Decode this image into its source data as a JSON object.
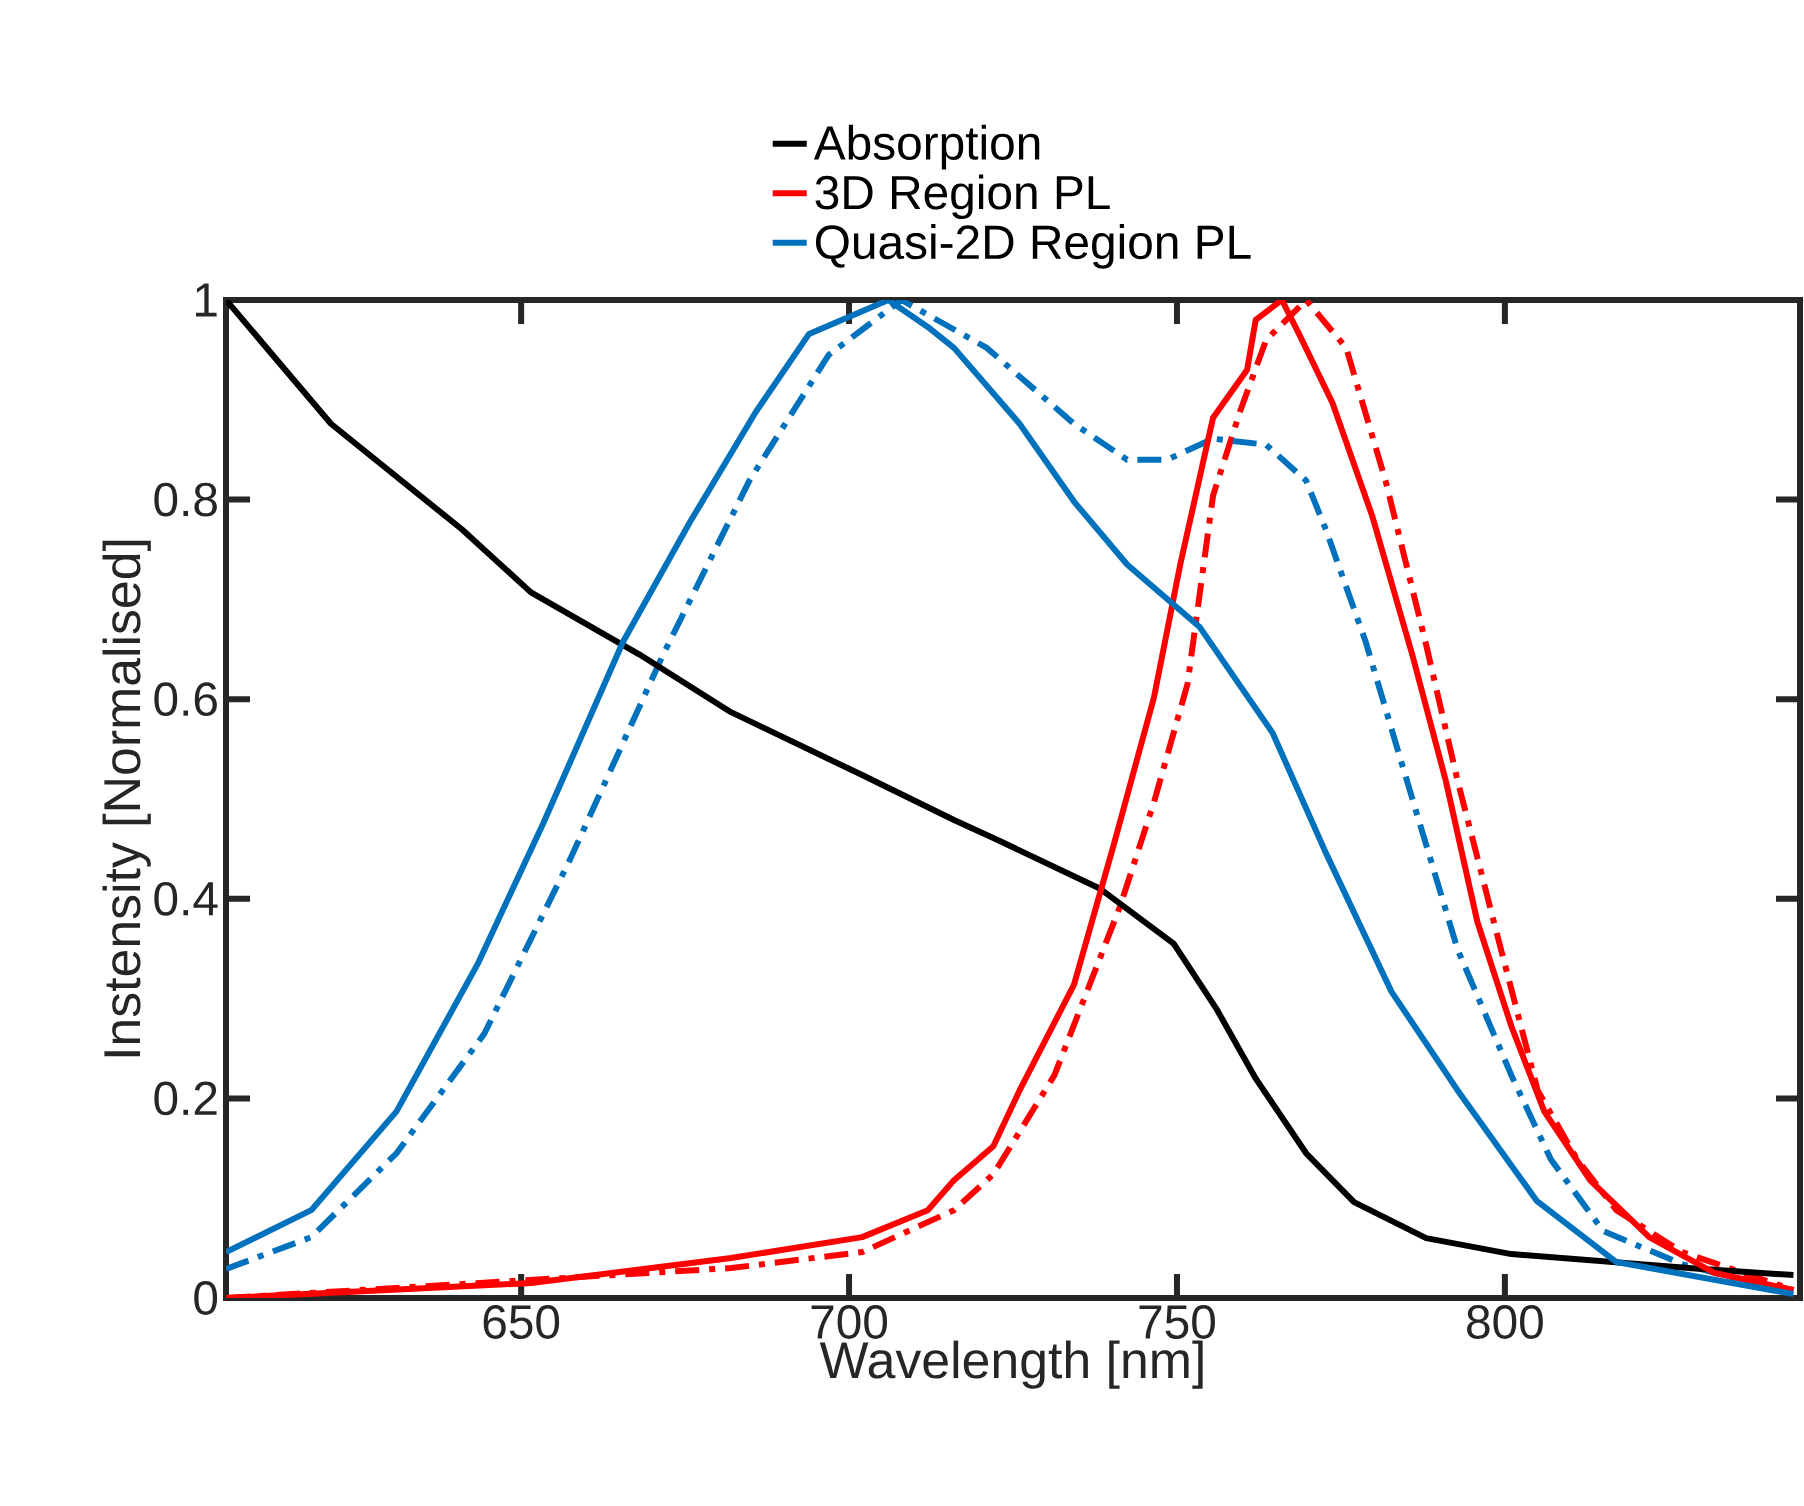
{
  "chart_data": {
    "type": "line",
    "xlabel": "Wavelength [nm]",
    "ylabel": "Instensity [Normalised]",
    "xlim": [
      605,
      845
    ],
    "ylim": [
      0,
      1.0
    ],
    "xticks": [
      650,
      700,
      750,
      800
    ],
    "yticks": [
      0,
      0.2,
      0.4,
      0.6,
      0.8,
      1
    ],
    "legend": "top",
    "marker": "none",
    "series": [
      {
        "name": "Absorption",
        "color": "#000000",
        "line_style": "solid",
        "x": [
          605,
          621,
          641,
          651.5,
          668,
          682,
          702,
          716,
          722,
          738.3,
          749.5,
          756,
          762,
          769.7,
          777,
          788,
          801,
          828,
          844
        ],
        "values": [
          1.0,
          0.876,
          0.77,
          0.707,
          0.645,
          0.587,
          0.524,
          0.479,
          0.461,
          0.41,
          0.355,
          0.29,
          0.22,
          0.145,
          0.096,
          0.06,
          0.044,
          0.03,
          0.023
        ]
      },
      {
        "name": "3D Region PL",
        "color": "#ff0000",
        "line_style": "solid",
        "x": [
          605,
          651.5,
          682,
          702,
          712,
          716,
          722,
          726,
          734.3,
          740.4,
          746.5,
          750.5,
          755.5,
          760.7,
          762,
          766,
          768.6,
          773.7,
          779.8,
          785.9,
          791,
          795.8,
          801,
          806,
          813,
          822,
          832,
          844
        ],
        "values": [
          0.0,
          0.015,
          0.04,
          0.061,
          0.088,
          0.118,
          0.152,
          0.208,
          0.314,
          0.455,
          0.602,
          0.735,
          0.882,
          0.93,
          0.98,
          1.0,
          0.966,
          0.897,
          0.783,
          0.644,
          0.518,
          0.377,
          0.272,
          0.187,
          0.118,
          0.061,
          0.025,
          0.008
        ]
      },
      {
        "name": "Quasi-2D Region PL",
        "color": "#0072bd",
        "line_style": "solid",
        "x": [
          605,
          618,
          631,
          643.4,
          653.4,
          665.5,
          675.7,
          685.8,
          693.9,
          706,
          712,
          716,
          726,
          734.3,
          742.4,
          753.5,
          764.6,
          772.7,
          782.7,
          792.8,
          804.9,
          817,
          844
        ],
        "values": [
          0.046,
          0.088,
          0.187,
          0.335,
          0.476,
          0.657,
          0.777,
          0.888,
          0.966,
          1.0,
          0.973,
          0.952,
          0.876,
          0.798,
          0.735,
          0.672,
          0.566,
          0.446,
          0.307,
          0.208,
          0.097,
          0.036,
          0.004
        ]
      },
      {
        "color": "#ff0000",
        "line_style": "dashdot",
        "x": [
          605,
          682,
          702,
          716,
          722,
          731.3,
          741.3,
          746.5,
          751.6,
          755.5,
          759.6,
          763.6,
          769.7,
          775.8,
          781.8,
          787.9,
          792.8,
          798.9,
          805,
          811,
          817,
          827,
          844
        ],
        "values": [
          0.0,
          0.03,
          0.046,
          0.088,
          0.124,
          0.223,
          0.392,
          0.497,
          0.615,
          0.804,
          0.888,
          0.96,
          1.0,
          0.952,
          0.819,
          0.657,
          0.518,
          0.362,
          0.208,
          0.139,
          0.088,
          0.046,
          0.008
        ]
      },
      {
        "color": "#0072bd",
        "line_style": "dashdot",
        "x": [
          605,
          618,
          631,
          644.4,
          657.5,
          671.6,
          684.8,
          696.9,
          708,
          721,
          734.3,
          742.4,
          748.5,
          755.5,
          763.6,
          769.7,
          772.7,
          778.8,
          784.8,
          792.8,
          801,
          807,
          815,
          827,
          844
        ],
        "values": [
          0.029,
          0.061,
          0.145,
          0.265,
          0.44,
          0.644,
          0.819,
          0.945,
          1.0,
          0.952,
          0.876,
          0.84,
          0.84,
          0.861,
          0.855,
          0.819,
          0.77,
          0.657,
          0.524,
          0.349,
          0.223,
          0.139,
          0.067,
          0.034,
          0.004
        ]
      }
    ]
  }
}
